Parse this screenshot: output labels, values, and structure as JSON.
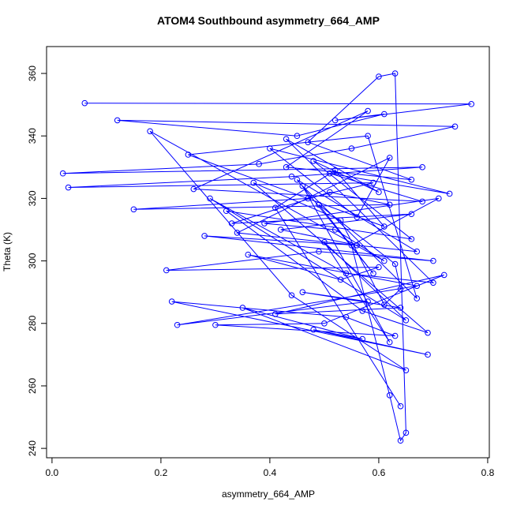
{
  "chart_data": {
    "type": "line-points",
    "title": "ATOM4 Southbound asymmetry_664_AMP",
    "x_label": "asymmetry_664_AMP",
    "y_label": "Theta (K)",
    "color": "#0000ff",
    "xlim": [
      -0.01,
      0.803
    ],
    "ylim": [
      237,
      368.6
    ],
    "xticks": [
      {
        "value": 0,
        "label": "0.0"
      },
      0.2,
      0.4,
      0.6,
      0.8
    ],
    "yticks": [
      240,
      260,
      280,
      300,
      320,
      340,
      360
    ],
    "x": [
      0.06,
      0.77,
      0.52,
      0.61,
      0.45,
      0.12,
      0.74,
      0.55,
      0.38,
      0.02,
      0.68,
      0.44,
      0.03,
      0.59,
      0.47,
      0.15,
      0.62,
      0.51,
      0.33,
      0.66,
      0.42,
      0.56,
      0.28,
      0.7,
      0.49,
      0.21,
      0.6,
      0.53,
      0.36,
      0.67,
      0.23,
      0.58,
      0.46,
      0.64,
      0.41,
      0.72,
      0.5,
      0.3,
      0.63,
      0.54,
      0.22,
      0.69,
      0.48,
      0.57,
      0.35,
      0.65,
      0.44,
      0.18,
      0.61,
      0.52,
      0.39,
      0.71,
      0.55,
      0.62,
      0.64,
      0.65,
      0.63,
      0.6,
      0.47,
      0.66,
      0.43,
      0.58,
      0.26,
      0.68,
      0.51,
      0.73,
      0.4,
      0.56,
      0.62,
      0.34,
      0.67,
      0.45,
      0.59,
      0.49,
      0.63,
      0.64,
      0.61,
      0.53,
      0.37,
      0.69,
      0.57,
      0.32,
      0.66,
      0.48,
      0.6,
      0.43,
      0.7,
      0.54,
      0.29,
      0.65,
      0.5,
      0.62,
      0.46,
      0.67,
      0.58,
      0.25,
      0.61,
      0.52,
      0.41,
      0.64
    ],
    "values": [
      350.5,
      350.2,
      345,
      347,
      340,
      345,
      343,
      336,
      331,
      328,
      330,
      327,
      323.5,
      325,
      320,
      316.5,
      318,
      322,
      312,
      315,
      310,
      305,
      308,
      300,
      303,
      297,
      298,
      294,
      302,
      292,
      279.5,
      287,
      290,
      285,
      283,
      295.5,
      280,
      279.5,
      276,
      282,
      287,
      270,
      278,
      275,
      285,
      265,
      289,
      341.5,
      300,
      310,
      312,
      320,
      305,
      257,
      242.5,
      245,
      360,
      359,
      338,
      326,
      330,
      348,
      323,
      319,
      328,
      321.5,
      336,
      314,
      333,
      309,
      303,
      326,
      296,
      318,
      299,
      291,
      286,
      313,
      325,
      277,
      284,
      316,
      307,
      332,
      322,
      339,
      293,
      296,
      320,
      281,
      306,
      274,
      324,
      288,
      340,
      334,
      311,
      329,
      317,
      253.5
    ]
  }
}
